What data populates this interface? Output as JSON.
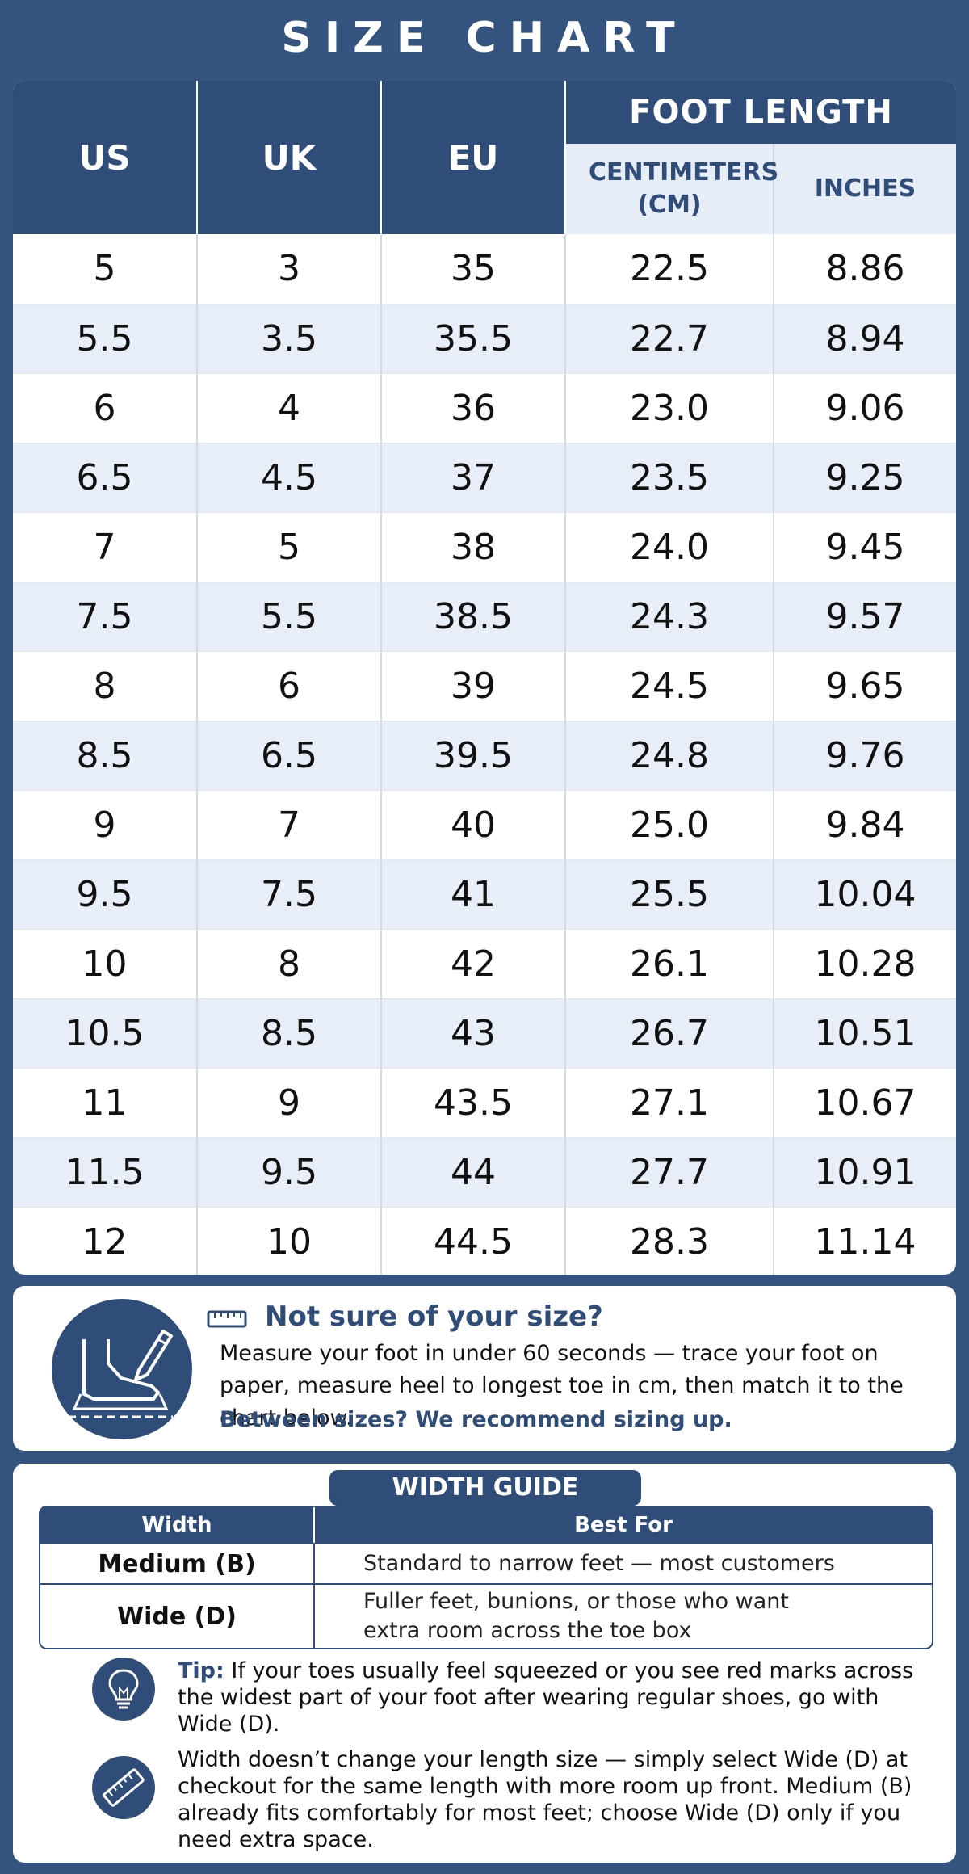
{
  "title": "SIZE CHART",
  "size_table": {
    "headers": {
      "us": "US",
      "uk": "UK",
      "eu": "EU",
      "foot_length": "FOOT LENGTH",
      "cm": "CENTIMETERS (CM)",
      "inches": "INCHES"
    },
    "rows": [
      [
        "5",
        "3",
        "35",
        "22.5",
        "8.86"
      ],
      [
        "5.5",
        "3.5",
        "35.5",
        "22.7",
        "8.94"
      ],
      [
        "6",
        "4",
        "36",
        "23.0",
        "9.06"
      ],
      [
        "6.5",
        "4.5",
        "37",
        "23.5",
        "9.25"
      ],
      [
        "7",
        "5",
        "38",
        "24.0",
        "9.45"
      ],
      [
        "7.5",
        "5.5",
        "38.5",
        "24.3",
        "9.57"
      ],
      [
        "8",
        "6",
        "39",
        "24.5",
        "9.65"
      ],
      [
        "8.5",
        "6.5",
        "39.5",
        "24.8",
        "9.76"
      ],
      [
        "9",
        "7",
        "40",
        "25.0",
        "9.84"
      ],
      [
        "9.5",
        "7.5",
        "41",
        "25.5",
        "10.04"
      ],
      [
        "10",
        "8",
        "42",
        "26.1",
        "10.28"
      ],
      [
        "10.5",
        "8.5",
        "43",
        "26.7",
        "10.51"
      ],
      [
        "11",
        "9",
        "43.5",
        "27.1",
        "10.67"
      ],
      [
        "11.5",
        "9.5",
        "44",
        "27.7",
        "10.91"
      ],
      [
        "12",
        "10",
        "44.5",
        "28.3",
        "11.14"
      ]
    ]
  },
  "measure": {
    "icon": "foot-measure-icon",
    "title": "Not sure of your size?",
    "body": "Measure your foot in under 60 seconds — trace your foot on paper, measure heel to longest toe in cm, then match it to the chart below.",
    "note": "Between sizes? We recommend sizing up."
  },
  "width_guide": {
    "title": "WIDTH GUIDE",
    "headers": {
      "width": "Width",
      "best_for": "Best For"
    },
    "rows": [
      {
        "width": "Medium (B)",
        "best_for": "Standard to narrow feet — most customers"
      },
      {
        "width": "Wide (D)",
        "best_for": "Fuller feet, bunions, or those who want extra room across the toe box"
      }
    ],
    "tips": [
      {
        "icon": "lightbulb-icon",
        "label": "Tip:",
        "text": "If your toes usually feel squeezed or you see red marks across the widest part of your foot after wearing regular shoes, go with Wide (D)."
      },
      {
        "icon": "ruler-icon",
        "label": "",
        "text": "Width doesn’t change your length size — simply select Wide (D) at checkout for the same length with more room up front. Medium (B) already fits comfortably for most feet; choose Wide (D) only if you need extra space."
      }
    ]
  },
  "colors": {
    "navy": "#2f4d78",
    "background": "#34547f",
    "row_alt": "#e8eef8",
    "white": "#ffffff"
  }
}
